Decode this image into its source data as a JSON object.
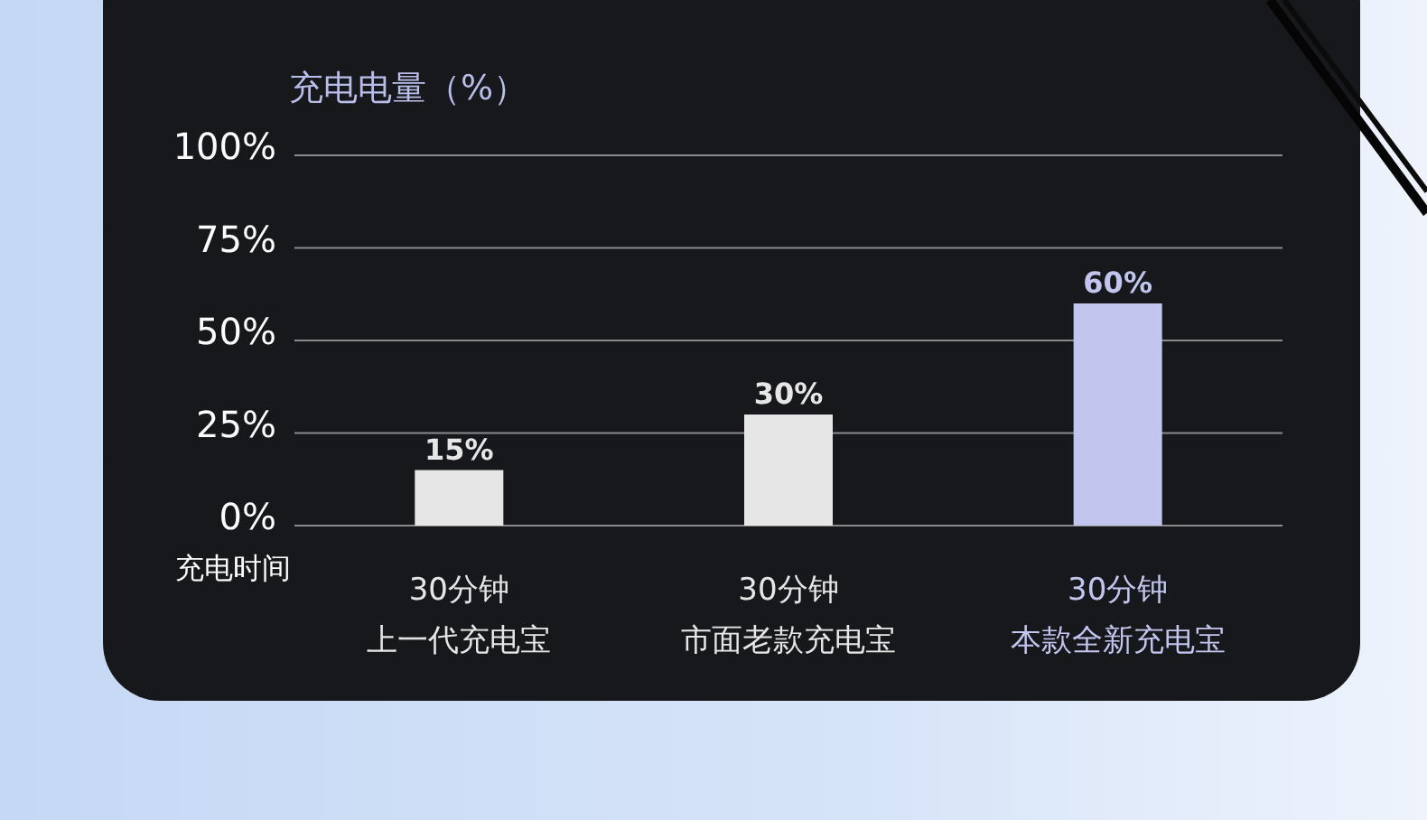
{
  "chart_data": {
    "type": "bar",
    "title": "充电电量（%）",
    "xlabel": "充电时间",
    "categories": [
      "30分钟上一代充电宝",
      "30分钟市面老款充电宝",
      "30分钟本款全新充电宝"
    ],
    "values": [
      15,
      30,
      60
    ],
    "colors": [
      "#e6e6e6",
      "#e6e6e6",
      "#c2c6ef"
    ],
    "value_labels": [
      "15%",
      "30%",
      "60%"
    ],
    "ylim": [
      0,
      100
    ],
    "yticks": [
      {
        "value": 0,
        "label": "0%"
      },
      {
        "value": 25,
        "label": "25%"
      },
      {
        "value": 50,
        "label": "50%"
      },
      {
        "value": 75,
        "label": "75%"
      },
      {
        "value": 100,
        "label": "100%"
      }
    ],
    "grid": "y"
  }
}
